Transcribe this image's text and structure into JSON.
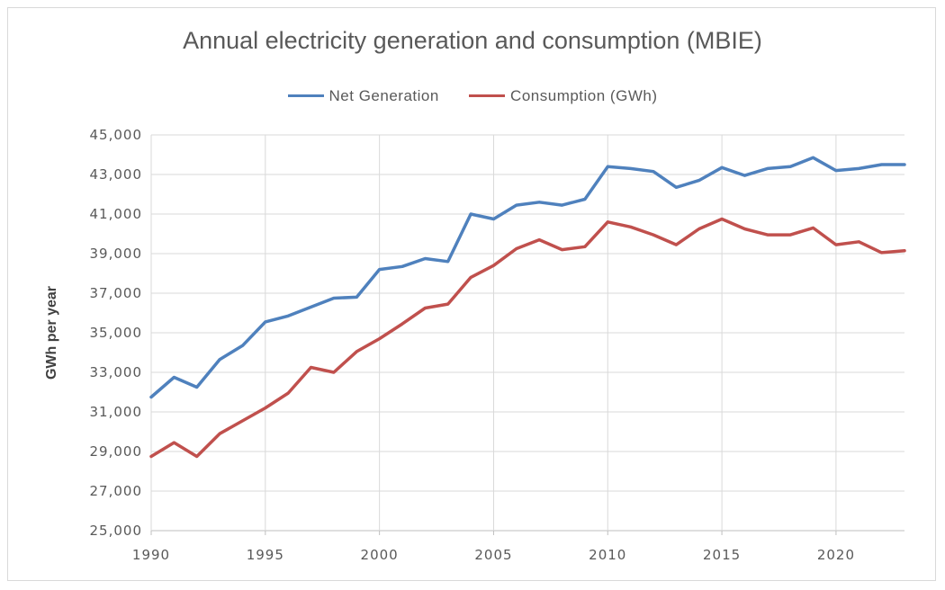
{
  "chart_data": {
    "type": "line",
    "title": "Annual electricity generation and consumption  (MBIE)",
    "xlabel": "",
    "ylabel": "GWh per year",
    "xlim": [
      1990,
      2023
    ],
    "ylim": [
      25000,
      45000
    ],
    "y_ticks": [
      25000,
      27000,
      29000,
      31000,
      33000,
      35000,
      37000,
      39000,
      41000,
      43000,
      45000
    ],
    "y_tick_labels": [
      "25,000",
      "27,000",
      "29,000",
      "31,000",
      "33,000",
      "35,000",
      "37,000",
      "39,000",
      "41,000",
      "43,000",
      "45,000"
    ],
    "x_ticks": [
      1990,
      1995,
      2000,
      2005,
      2010,
      2015,
      2020
    ],
    "x_tick_labels": [
      "1990",
      "1995",
      "2000",
      "2005",
      "2010",
      "2015",
      "2020"
    ],
    "grid": true,
    "legend_position": "top",
    "x": [
      1990,
      1991,
      1992,
      1993,
      1994,
      1995,
      1996,
      1997,
      1998,
      1999,
      2000,
      2001,
      2002,
      2003,
      2004,
      2005,
      2006,
      2007,
      2008,
      2009,
      2010,
      2011,
      2012,
      2013,
      2014,
      2015,
      2016,
      2017,
      2018,
      2019,
      2020,
      2021,
      2022,
      2023
    ],
    "series": [
      {
        "name": "Net Generation",
        "color": "#4f81bd",
        "values": [
          31750,
          32750,
          32250,
          33650,
          34350,
          35550,
          35850,
          36300,
          36750,
          36800,
          38200,
          38350,
          38750,
          38600,
          41000,
          40750,
          41450,
          41600,
          41450,
          41750,
          43400,
          43300,
          43150,
          42350,
          42700,
          43350,
          42950,
          43300,
          43400,
          43850,
          43200,
          43300,
          43500,
          43500
        ]
      },
      {
        "name": "Consumption (GWh)",
        "color": "#c0504d",
        "values": [
          28750,
          29450,
          28750,
          29900,
          30550,
          31200,
          31950,
          33250,
          33000,
          34050,
          34700,
          35450,
          36250,
          36450,
          37800,
          38400,
          39250,
          39700,
          39200,
          39350,
          40600,
          40350,
          39950,
          39450,
          40250,
          40750,
          40250,
          39950,
          39950,
          40300,
          39450,
          39600,
          39050,
          39150
        ]
      }
    ]
  }
}
